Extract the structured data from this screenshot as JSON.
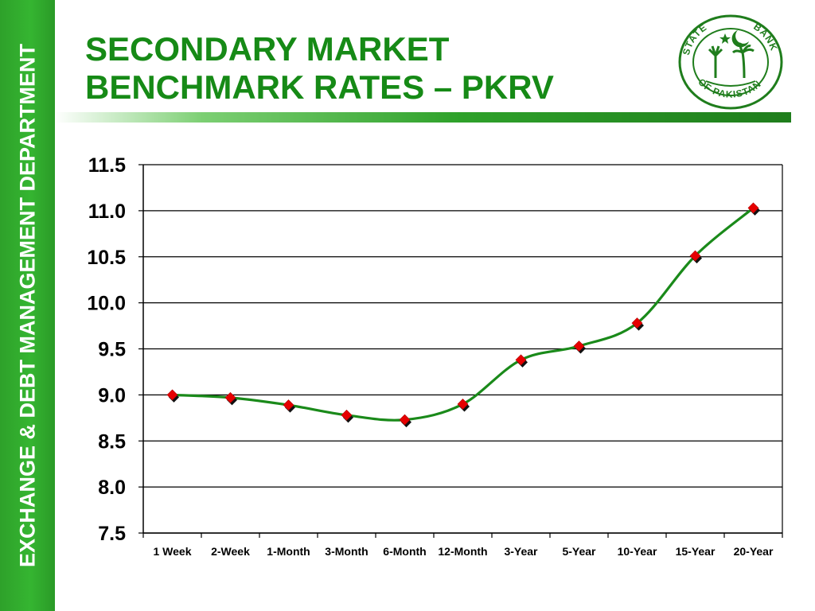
{
  "sidebar": {
    "label": "EXCHANGE & DEBT MANAGEMENT DEPARTMENT"
  },
  "title": {
    "line1": "SECONDARY MARKET",
    "line2": "BENCHMARK RATES – PKRV"
  },
  "logo": {
    "icon": "state-bank-of-pakistan-seal",
    "text": "STATE BANK OF PAKISTAN"
  },
  "colors": {
    "sidebar": "#35b531",
    "title": "#168a16",
    "line": "#1a8a1a",
    "marker": "#e60000"
  },
  "chart_data": {
    "type": "line",
    "title": "",
    "xlabel": "",
    "ylabel": "",
    "categories": [
      "1 Week",
      "2-Week",
      "1-Month",
      "3-Month",
      "6-Month",
      "12-Month",
      "3-Year",
      "5-Year",
      "10-Year",
      "15-Year",
      "20-Year"
    ],
    "series": [
      {
        "values": [
          9.0,
          8.97,
          8.89,
          8.78,
          8.73,
          8.9,
          9.38,
          9.53,
          9.78,
          10.51,
          11.03
        ]
      }
    ],
    "ylim": [
      7.5,
      11.5
    ],
    "yticks": [
      "7.5",
      "8.0",
      "8.5",
      "9.0",
      "9.5",
      "10.0",
      "10.5",
      "11.0",
      "11.5"
    ],
    "grid": true,
    "legend": "none"
  }
}
